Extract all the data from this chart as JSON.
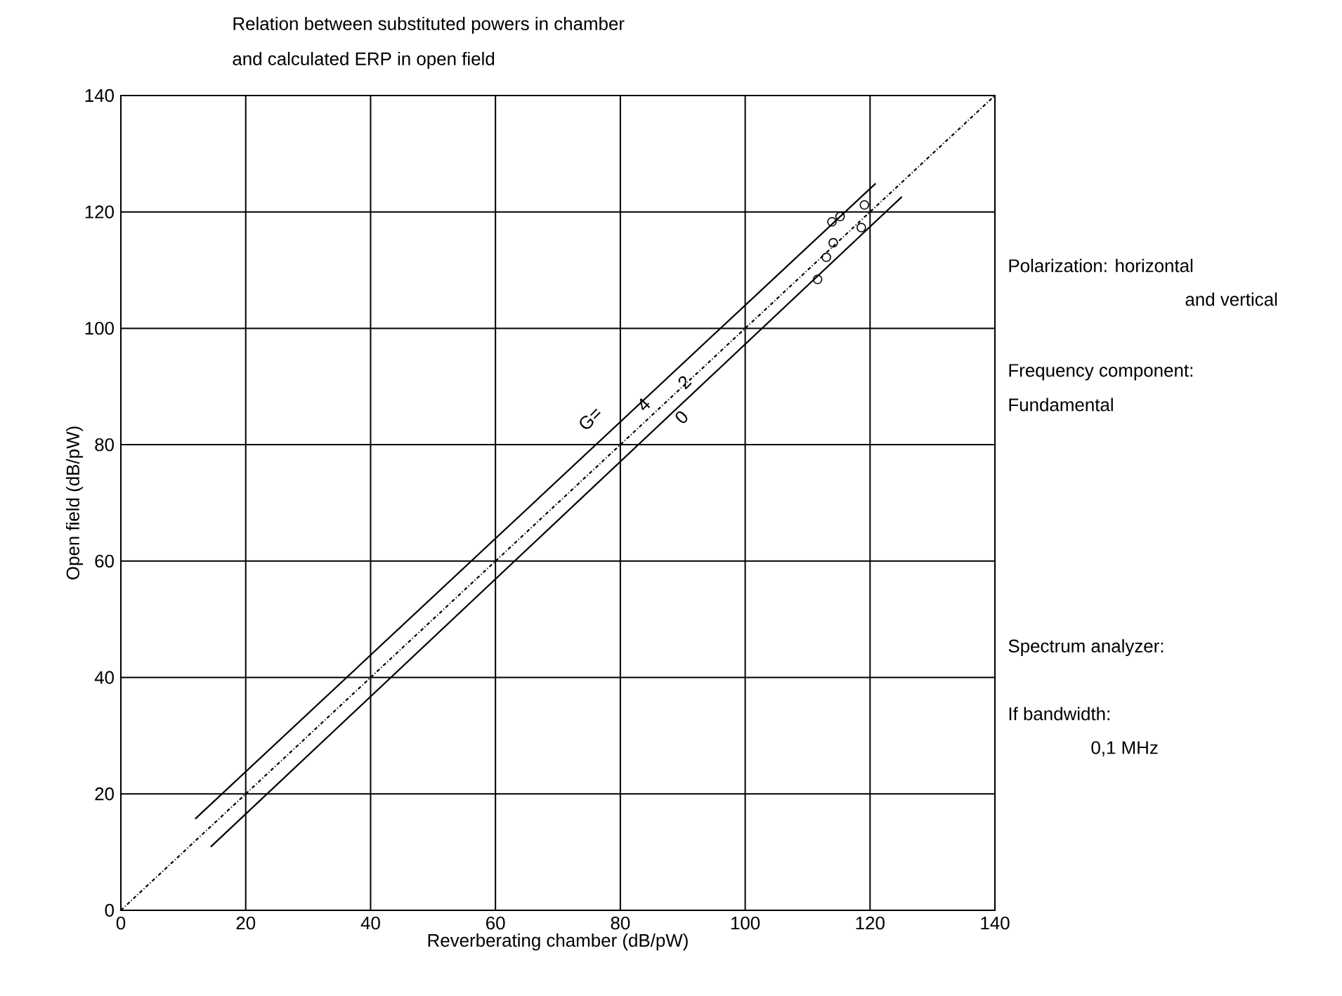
{
  "chart_data": {
    "type": "scatter",
    "title": "Relation between substituted powers in chamber",
    "subtitle": "and calculated ERP in open field",
    "xlabel": "Reverberating chamber   (dB/pW)",
    "ylabel": "Open field   (dB/pW)",
    "xlim": [
      0,
      140
    ],
    "ylim": [
      0,
      140
    ],
    "xticks": [
      0,
      20,
      40,
      60,
      80,
      100,
      120,
      140
    ],
    "yticks": [
      0,
      20,
      40,
      60,
      80,
      100,
      120,
      140
    ],
    "grid": true,
    "series": [
      {
        "type": "line",
        "color": "#000000",
        "line_style": "solid",
        "x": [
          11.9,
          120.9
        ],
        "values": [
          15.7,
          124.9
        ]
      },
      {
        "type": "line",
        "color": "#000000",
        "line_style": "dotted",
        "x": [
          0,
          140
        ],
        "values": [
          0,
          140
        ]
      },
      {
        "type": "line",
        "color": "#000000",
        "line_style": "solid",
        "x": [
          14.4,
          125.1
        ],
        "values": [
          10.9,
          122.6
        ]
      },
      {
        "marker": "circle",
        "color": "#000000",
        "x": [
          119.1,
          115.2,
          113.9,
          118.6,
          114.1,
          113.0,
          111.6
        ],
        "values": [
          121.2,
          119.2,
          118.3,
          117.3,
          114.7,
          112.2,
          108.4
        ]
      }
    ],
    "annotations": [
      "G=",
      "4",
      "2",
      "0",
      "Polarization: horizontal",
      "and vertical",
      "Frequency component:",
      "Fundamental",
      "Spectrum analyzer:",
      "If bandwidth:",
      "0,1 MHz"
    ]
  }
}
